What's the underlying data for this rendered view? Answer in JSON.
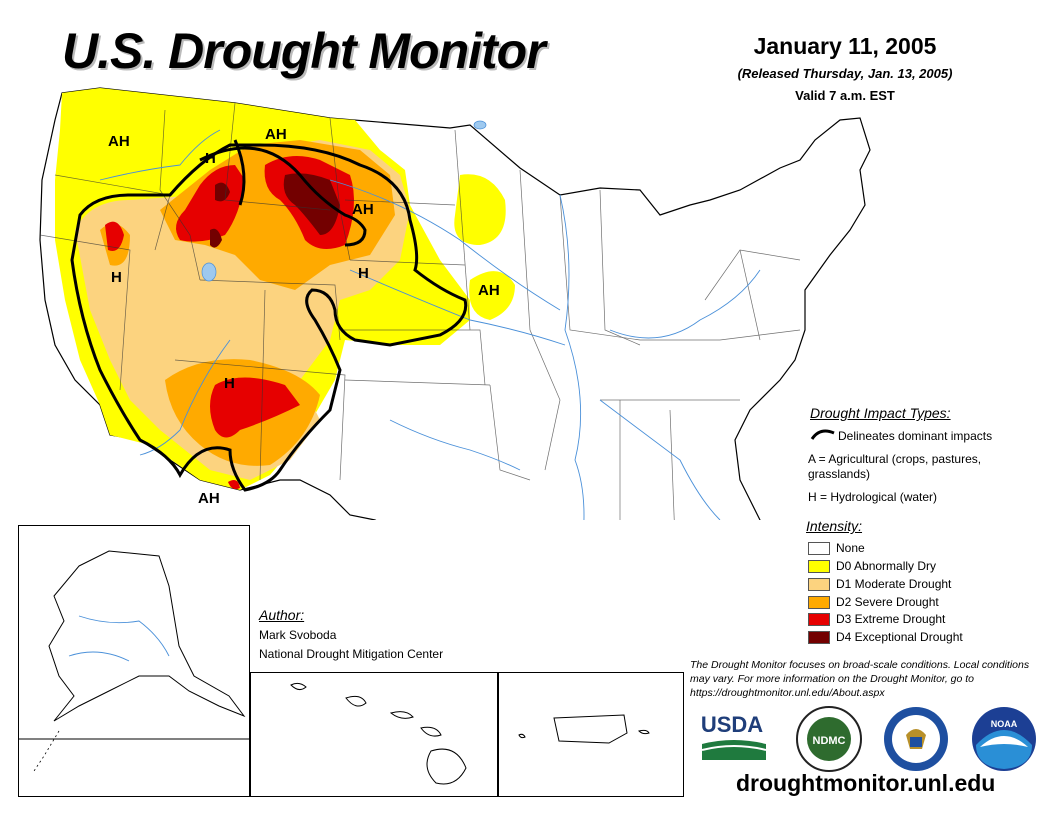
{
  "header": {
    "title": "U.S. Drought Monitor",
    "date": "January 11, 2005",
    "released": "(Released Thursday, Jan. 13, 2005)",
    "valid": "Valid 7 a.m. EST"
  },
  "map_labels": {
    "ah_northwest": "AH",
    "ah_montana": "AH",
    "h_idaho": "H",
    "ah_dakotas": "AH",
    "h_nebraska": "H",
    "h_nevada": "H",
    "ah_iowa": "AH",
    "h_arizona": "H",
    "ah_southaz": "AH"
  },
  "impact_legend": {
    "heading": "Drought Impact Types:",
    "delineates": "Delineates dominant impacts",
    "agricultural": "A = Agricultural (crops, pastures, grasslands)",
    "hydrological": "H = Hydrological (water)"
  },
  "intensity_legend": {
    "heading": "Intensity:",
    "items": [
      {
        "label": "None",
        "color": "#ffffff"
      },
      {
        "label": "D0 Abnormally Dry",
        "color": "#ffff00"
      },
      {
        "label": "D1 Moderate Drought",
        "color": "#fcd37f"
      },
      {
        "label": "D2 Severe Drought",
        "color": "#ffaa00"
      },
      {
        "label": "D3 Extreme Drought",
        "color": "#e60000"
      },
      {
        "label": "D4 Exceptional Drought",
        "color": "#730000"
      }
    ]
  },
  "author": {
    "heading": "Author:",
    "name": "Mark Svoboda",
    "organization": "National Drought Mitigation Center"
  },
  "note": "The Drought Monitor focuses on broad-scale conditions. Local conditions may vary. For more information on the Drought Monitor, go to https://droughtmonitor.unl.edu/About.aspx",
  "logos": {
    "usda": "USDA",
    "ndmc": "NDMC",
    "noaa": "NOAA"
  },
  "url": "droughtmonitor.unl.edu",
  "colors": {
    "d0": "#ffff00",
    "d1": "#fcd37f",
    "d2": "#ffaa00",
    "d3": "#e60000",
    "d4": "#730000",
    "rivers": "#4a90d9",
    "lakes": "#9ec9ef"
  }
}
